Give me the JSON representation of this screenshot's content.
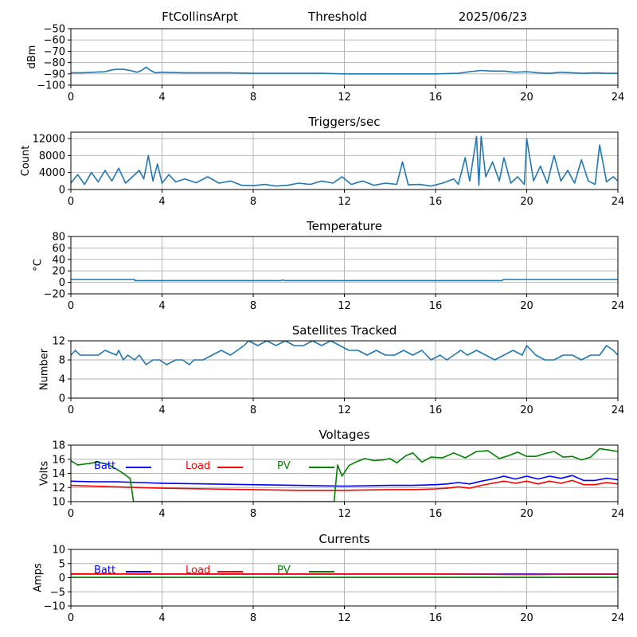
{
  "header": {
    "station": "FtCollinsArpt",
    "mode": "Threshold",
    "date": "2025/06/23"
  },
  "colors": {
    "default": "#1f77b4",
    "batt": "#0000ff",
    "load": "#ff0000",
    "pv": "#008000"
  },
  "chart_data": [
    {
      "id": "threshold",
      "type": "line",
      "title": "",
      "ylabel": "dBm",
      "xlim": [
        0,
        24
      ],
      "xticks": [
        0,
        4,
        8,
        12,
        16,
        20,
        24
      ],
      "ylim": [
        -100,
        -50
      ],
      "yticks": [
        -100,
        -90,
        -80,
        -70,
        -60,
        -50
      ],
      "grid": true,
      "series": [
        {
          "name": "",
          "color": "#1f77b4",
          "x": [
            0,
            0.5,
            1,
            1.5,
            1.8,
            2,
            2.3,
            2.6,
            2.9,
            3.1,
            3.3,
            3.5,
            3.7,
            4,
            5,
            6,
            7,
            8,
            9,
            10,
            11,
            12,
            13,
            14,
            15,
            16,
            17,
            17.5,
            18,
            18.5,
            19,
            19.5,
            20,
            20.5,
            21,
            21.5,
            22,
            22.5,
            23,
            23.5,
            24
          ],
          "y": [
            -89,
            -89,
            -88.5,
            -88,
            -86.5,
            -86,
            -86,
            -87,
            -88.5,
            -87,
            -84,
            -87,
            -89,
            -88.5,
            -89,
            -89,
            -89,
            -89.5,
            -89.5,
            -89.5,
            -89.5,
            -90,
            -90,
            -90,
            -90,
            -90,
            -89.5,
            -88,
            -87,
            -87.5,
            -87.5,
            -88.5,
            -88,
            -89,
            -89.5,
            -88.5,
            -89,
            -89.5,
            -89,
            -89.5,
            -89.5
          ]
        }
      ]
    },
    {
      "id": "triggers",
      "type": "line",
      "title": "Triggers/sec",
      "ylabel": "Count",
      "xlim": [
        0,
        24
      ],
      "xticks": [
        0,
        4,
        8,
        12,
        16,
        20,
        24
      ],
      "ylim": [
        0,
        13500
      ],
      "yticks": [
        0,
        4000,
        8000,
        12000
      ],
      "grid": true,
      "series": [
        {
          "name": "",
          "color": "#1f77b4",
          "x": [
            0,
            0.3,
            0.6,
            0.9,
            1.2,
            1.5,
            1.8,
            2.1,
            2.4,
            2.7,
            3.0,
            3.2,
            3.4,
            3.6,
            3.8,
            4.0,
            4.3,
            4.6,
            5.0,
            5.5,
            6.0,
            6.5,
            7.0,
            7.5,
            8.0,
            8.5,
            9.0,
            9.5,
            10.0,
            10.5,
            11.0,
            11.5,
            11.9,
            12.3,
            12.8,
            13.3,
            13.8,
            14.3,
            14.55,
            14.8,
            15.3,
            15.8,
            16.3,
            16.8,
            17.0,
            17.3,
            17.5,
            17.7,
            17.8,
            17.9,
            18.0,
            18.2,
            18.5,
            18.8,
            19.0,
            19.3,
            19.6,
            19.9,
            20.0,
            20.3,
            20.6,
            20.9,
            21.2,
            21.5,
            21.8,
            22.1,
            22.4,
            22.7,
            23.0,
            23.2,
            23.5,
            23.8,
            24
          ],
          "y": [
            1500,
            3500,
            1200,
            4000,
            1800,
            4500,
            2000,
            5000,
            1500,
            3000,
            4500,
            2500,
            8000,
            2000,
            6000,
            1500,
            3500,
            1800,
            2500,
            1600,
            3000,
            1500,
            2000,
            1000,
            900,
            1200,
            800,
            1000,
            1500,
            1200,
            2000,
            1500,
            3000,
            1200,
            2000,
            1000,
            1500,
            1200,
            6500,
            1100,
            1200,
            800,
            1500,
            2500,
            1200,
            7500,
            2000,
            9000,
            12500,
            1000,
            12500,
            3000,
            6500,
            2000,
            7500,
            1500,
            3000,
            1200,
            12000,
            2000,
            5500,
            1500,
            8000,
            2000,
            4500,
            1500,
            7000,
            2000,
            1200,
            10500,
            1800,
            3000,
            2000
          ]
        }
      ]
    },
    {
      "id": "temperature",
      "type": "line",
      "title": "Temperature",
      "ylabel": "°C",
      "xlim": [
        0,
        24
      ],
      "xticks": [
        0,
        4,
        8,
        12,
        16,
        20,
        24
      ],
      "ylim": [
        -20,
        80
      ],
      "yticks": [
        -20,
        0,
        20,
        40,
        60,
        80
      ],
      "grid": true,
      "series": [
        {
          "name": "",
          "color": "#1f77b4",
          "x": [
            0,
            2.8,
            2.81,
            9.2,
            9.3,
            9.4,
            18.9,
            19.0,
            24
          ],
          "y": [
            5,
            5,
            3,
            3,
            4,
            3,
            3,
            5,
            5
          ]
        }
      ]
    },
    {
      "id": "satellites",
      "type": "line",
      "title": "Satellites Tracked",
      "ylabel": "Number",
      "xlim": [
        0,
        24
      ],
      "xticks": [
        0,
        4,
        8,
        12,
        16,
        20,
        24
      ],
      "ylim": [
        0,
        12
      ],
      "yticks": [
        0,
        4,
        8,
        12
      ],
      "grid": true,
      "series": [
        {
          "name": "",
          "color": "#1f77b4",
          "x": [
            0,
            0.2,
            0.4,
            1.2,
            1.5,
            2.0,
            2.1,
            2.3,
            2.5,
            2.8,
            3.0,
            3.3,
            3.6,
            3.9,
            4.2,
            4.6,
            4.9,
            5.2,
            5.4,
            5.8,
            6.2,
            6.6,
            7.0,
            7.3,
            7.6,
            7.8,
            8.2,
            8.6,
            9.0,
            9.4,
            9.8,
            10.2,
            10.6,
            11.0,
            11.4,
            11.8,
            12.2,
            12.6,
            13.0,
            13.4,
            13.8,
            14.2,
            14.6,
            15.0,
            15.4,
            15.8,
            16.2,
            16.5,
            16.8,
            17.1,
            17.4,
            17.8,
            18.2,
            18.6,
            19.0,
            19.4,
            19.8,
            20.0,
            20.4,
            20.8,
            21.2,
            21.6,
            22.0,
            22.4,
            22.8,
            23.2,
            23.5,
            23.8,
            24
          ],
          "y": [
            9,
            10,
            9,
            9,
            10,
            9,
            10,
            8,
            9,
            8,
            9,
            7,
            8,
            8,
            7,
            8,
            8,
            7,
            8,
            8,
            9,
            10,
            9,
            10,
            11,
            12,
            11,
            12,
            11,
            12,
            11,
            11,
            12,
            11,
            12,
            11,
            10,
            10,
            9,
            10,
            9,
            9,
            10,
            9,
            10,
            8,
            9,
            8,
            9,
            10,
            9,
            10,
            9,
            8,
            9,
            10,
            9,
            11,
            9,
            8,
            8,
            9,
            9,
            8,
            9,
            9,
            11,
            10,
            9
          ]
        }
      ]
    },
    {
      "id": "voltages",
      "type": "line",
      "title": "Voltages",
      "ylabel": "Volts",
      "xlim": [
        0,
        24
      ],
      "xticks": [
        0,
        4,
        8,
        12,
        16,
        20,
        24
      ],
      "ylim": [
        10,
        18
      ],
      "yticks": [
        10,
        12,
        14,
        16,
        18
      ],
      "grid": true,
      "series": [
        {
          "name": "Batt",
          "color": "#0000ff",
          "x": [
            0,
            1,
            2,
            3,
            4,
            6,
            8,
            10,
            12,
            14,
            15,
            16,
            16.5,
            17,
            17.5,
            18,
            18.5,
            19,
            19.5,
            20,
            20.5,
            21,
            21.5,
            22,
            22.5,
            23,
            23.5,
            24
          ],
          "y": [
            12.9,
            12.8,
            12.8,
            12.7,
            12.6,
            12.5,
            12.4,
            12.3,
            12.2,
            12.3,
            12.3,
            12.4,
            12.5,
            12.7,
            12.5,
            12.9,
            13.2,
            13.6,
            13.2,
            13.6,
            13.2,
            13.6,
            13.3,
            13.7,
            13.0,
            13.0,
            13.3,
            13.1
          ]
        },
        {
          "name": "Load",
          "color": "#ff0000",
          "x": [
            0,
            1,
            2,
            3,
            4,
            6,
            8,
            10,
            12,
            14,
            15,
            16,
            16.5,
            17,
            17.5,
            18,
            18.5,
            19,
            19.5,
            20,
            20.5,
            21,
            21.5,
            22,
            22.5,
            23,
            23.5,
            24
          ],
          "y": [
            12.3,
            12.2,
            12.1,
            12.0,
            11.9,
            11.8,
            11.7,
            11.6,
            11.6,
            11.7,
            11.7,
            11.8,
            11.9,
            12.1,
            11.9,
            12.3,
            12.6,
            12.9,
            12.6,
            12.9,
            12.5,
            12.9,
            12.6,
            13.0,
            12.4,
            12.4,
            12.7,
            12.5
          ]
        },
        {
          "name": "PV",
          "color": "#008000",
          "x": [
            0,
            0.3,
            0.8,
            1.2,
            1.6,
            2.0,
            2.2,
            2.5,
            2.6,
            2.75,
            11.55,
            11.7,
            11.9,
            12.2,
            12.5,
            12.9,
            13.3,
            13.7,
            14.0,
            14.3,
            14.7,
            15.0,
            15.4,
            15.8,
            16.3,
            16.8,
            17.3,
            17.8,
            18.3,
            18.8,
            19.2,
            19.6,
            20.0,
            20.4,
            20.8,
            21.2,
            21.6,
            22.0,
            22.4,
            22.8,
            23.2,
            23.6,
            24
          ],
          "y": [
            15.8,
            15.2,
            15.4,
            15.6,
            15.3,
            14.6,
            14.2,
            13.5,
            13.3,
            10,
            10,
            15.2,
            13.6,
            15.1,
            15.6,
            16.1,
            15.8,
            15.9,
            16.1,
            15.5,
            16.5,
            16.9,
            15.6,
            16.3,
            16.2,
            16.9,
            16.2,
            17.1,
            17.2,
            16.1,
            16.5,
            17.0,
            16.4,
            16.4,
            16.8,
            17.1,
            16.3,
            16.4,
            15.9,
            16.3,
            17.5,
            17.3,
            17.1
          ]
        }
      ]
    },
    {
      "id": "currents",
      "type": "line",
      "title": "Currents",
      "ylabel": "Amps",
      "xlim": [
        0,
        24
      ],
      "xticks": [
        0,
        4,
        8,
        12,
        16,
        20,
        24
      ],
      "ylim": [
        -10,
        10
      ],
      "yticks": [
        -10,
        -5,
        0,
        5,
        10
      ],
      "grid": true,
      "series": [
        {
          "name": "Batt",
          "color": "#0000ff",
          "x": [
            0,
            24
          ],
          "y": [
            1.3,
            1.3
          ]
        },
        {
          "name": "Load",
          "color": "#ff0000",
          "x": [
            0,
            4,
            8,
            12,
            16,
            18,
            20,
            22,
            24
          ],
          "y": [
            1.4,
            1.3,
            1.3,
            1.3,
            1.3,
            1.2,
            1.1,
            1.2,
            1.2
          ]
        },
        {
          "name": "PV",
          "color": "#008000",
          "x": [
            0,
            24
          ],
          "y": [
            0.1,
            0.1
          ]
        }
      ]
    }
  ]
}
